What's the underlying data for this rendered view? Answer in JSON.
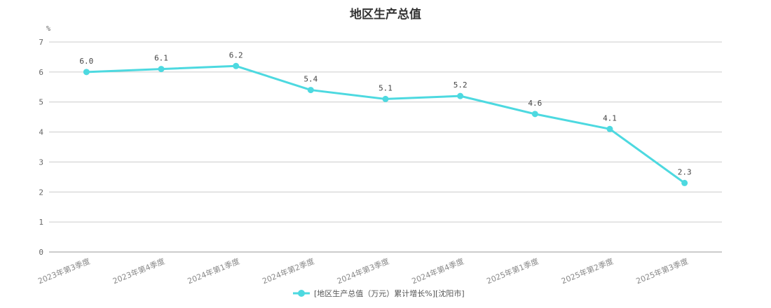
{
  "chart_data": {
    "type": "line",
    "title": "地区生产总值",
    "y_unit": "%",
    "ylim": [
      0,
      7
    ],
    "y_ticks": [
      0,
      1,
      2,
      3,
      4,
      5,
      6,
      7
    ],
    "grid": true,
    "legend_position": "bottom-center",
    "categories": [
      "2023年第3季度",
      "2023年第4季度",
      "2024年第1季度",
      "2024年第2季度",
      "2024年第3季度",
      "2024年第4季度",
      "2025年第1季度",
      "2025年第2季度",
      "2025年第3季度"
    ],
    "series": [
      {
        "name": "[地区生产总值（万元）累计增长%][沈阳市]",
        "color": "#4dd9e0",
        "values": [
          6.0,
          6.1,
          6.2,
          5.4,
          5.1,
          5.2,
          4.6,
          4.1,
          2.3
        ],
        "labels": [
          "6.0",
          "6.1",
          "6.2",
          "5.4",
          "5.1",
          "5.2",
          "4.6",
          "4.1",
          "2.3"
        ]
      }
    ]
  }
}
